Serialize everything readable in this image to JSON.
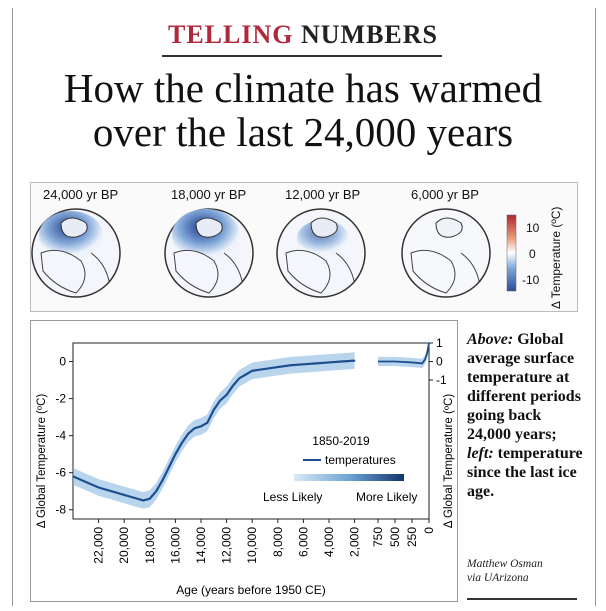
{
  "header": {
    "kicker_part1": "TELLING",
    "kicker_part2": "NUMBERS",
    "headline_line1": "How the climate has warmed",
    "headline_line2": "over the last 24,000 years"
  },
  "globes": {
    "labels": [
      "24,000 yr BP",
      "18,000 yr BP",
      "12,000 yr BP",
      "6,000 yr BP"
    ],
    "colorbar": {
      "label": "Δ Temperature (ºC)",
      "ticks": [
        "10",
        "0",
        "-10"
      ],
      "colors": [
        "#2b4a9a",
        "#7fa6d8",
        "#ffffff",
        "#e89a7a",
        "#b4242f"
      ]
    }
  },
  "chart_data": {
    "type": "line",
    "title": "",
    "xlabel": "Age (years before 1950 CE)",
    "ylabel_left": "Δ Global Temperature (ºC)",
    "ylabel_right": "Δ Global Temperature (ºC)",
    "x_ticks_left": [
      "22,000",
      "20,000",
      "18,000",
      "16,000",
      "14,000",
      "12,000",
      "10,000",
      "8,000",
      "6,000",
      "4,000",
      "2,000"
    ],
    "x_ticks_right": [
      "750",
      "500",
      "250",
      "0"
    ],
    "y_ticks_left": [
      "0",
      "-2",
      "-4",
      "-6",
      "-8"
    ],
    "y_ticks_right": [
      "1",
      "0",
      "-1"
    ],
    "ylim": [
      -8.5,
      1
    ],
    "x_reversed": true,
    "series": [
      {
        "name": "Global average temperature",
        "x": [
          24000,
          23000,
          22000,
          21000,
          20000,
          19000,
          18500,
          18000,
          17500,
          17000,
          16500,
          16000,
          15500,
          15000,
          14500,
          14000,
          13500,
          13000,
          12500,
          12000,
          11500,
          11000,
          10500,
          10000,
          9000,
          8000,
          7000,
          6000,
          5000,
          4000,
          3000,
          2000
        ],
        "y": [
          -6.2,
          -6.5,
          -6.8,
          -7.0,
          -7.2,
          -7.4,
          -7.5,
          -7.4,
          -7.0,
          -6.4,
          -5.7,
          -5.0,
          -4.4,
          -3.9,
          -3.6,
          -3.5,
          -3.3,
          -2.6,
          -2.1,
          -1.8,
          -1.3,
          -0.9,
          -0.7,
          -0.5,
          -0.4,
          -0.3,
          -0.2,
          -0.15,
          -0.1,
          -0.05,
          0.0,
          0.05
        ]
      },
      {
        "name": "1850-2019 temperatures",
        "x": [
          750,
          500,
          250,
          100,
          60,
          30,
          0
        ],
        "y": [
          0.0,
          0.0,
          -0.05,
          -0.1,
          0.1,
          0.4,
          1.0
        ]
      }
    ],
    "legend": {
      "series_label": "1850-2019\ntemperatures",
      "series_label_line1": "1850-2019",
      "series_label_line2": "temperatures",
      "likelihood_low": "Less Likely",
      "likelihood_high": "More Likely",
      "placement": "lower-right"
    },
    "grid": false,
    "colors": {
      "line": "#1d4f8f",
      "band": "#7fb3e0"
    }
  },
  "caption": {
    "lead1": "Above:",
    "text1": " Global average surface temperature at different periods going back 24,000 years;",
    "lead2": " left:",
    "text2": " temperature since the last ice age.",
    "credit_line1": "Matthew Osman",
    "credit_line2": "via UArizona"
  }
}
